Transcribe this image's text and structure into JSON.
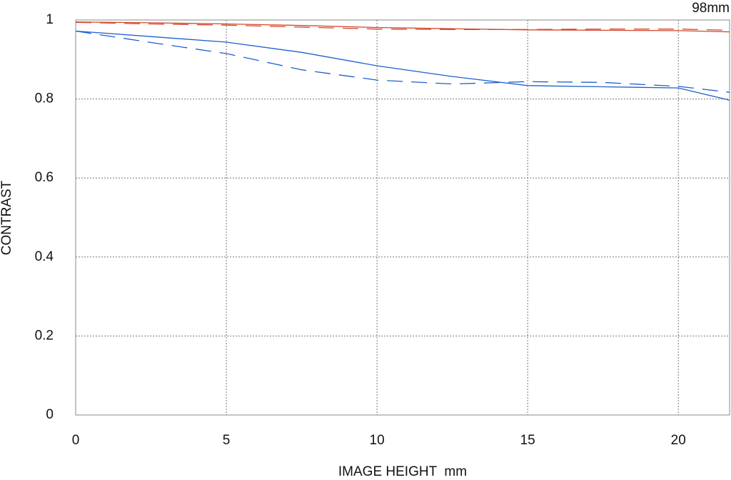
{
  "chart_data": {
    "type": "line",
    "annotation": "98mm",
    "xlabel": "IMAGE HEIGHT  mm",
    "ylabel": "CONTRAST",
    "x": [
      0,
      2.5,
      5,
      7.5,
      10,
      12.5,
      15,
      17.5,
      20,
      21.7
    ],
    "series": [
      {
        "color": "#d4472c",
        "dash": false,
        "values": [
          0.995,
          0.993,
          0.99,
          0.986,
          0.981,
          0.978,
          0.975,
          0.974,
          0.973,
          0.97
        ]
      },
      {
        "color": "#d4472c",
        "dash": true,
        "values": [
          0.994,
          0.99,
          0.987,
          0.982,
          0.977,
          0.976,
          0.976,
          0.977,
          0.977,
          0.974
        ]
      },
      {
        "color": "#1f5fcf",
        "dash": false,
        "values": [
          0.972,
          0.958,
          0.944,
          0.918,
          0.884,
          0.857,
          0.834,
          0.831,
          0.828,
          0.797
        ]
      },
      {
        "color": "#1f5fcf",
        "dash": true,
        "values": [
          0.972,
          0.943,
          0.915,
          0.874,
          0.848,
          0.838,
          0.844,
          0.842,
          0.832,
          0.817
        ]
      }
    ],
    "xlim": [
      0,
      21.7
    ],
    "ylim": [
      0,
      1
    ],
    "xticks": [
      0,
      5,
      10,
      15,
      20
    ],
    "yticks": [
      0,
      0.2,
      0.4,
      0.6,
      0.8,
      1
    ],
    "grid": true
  }
}
